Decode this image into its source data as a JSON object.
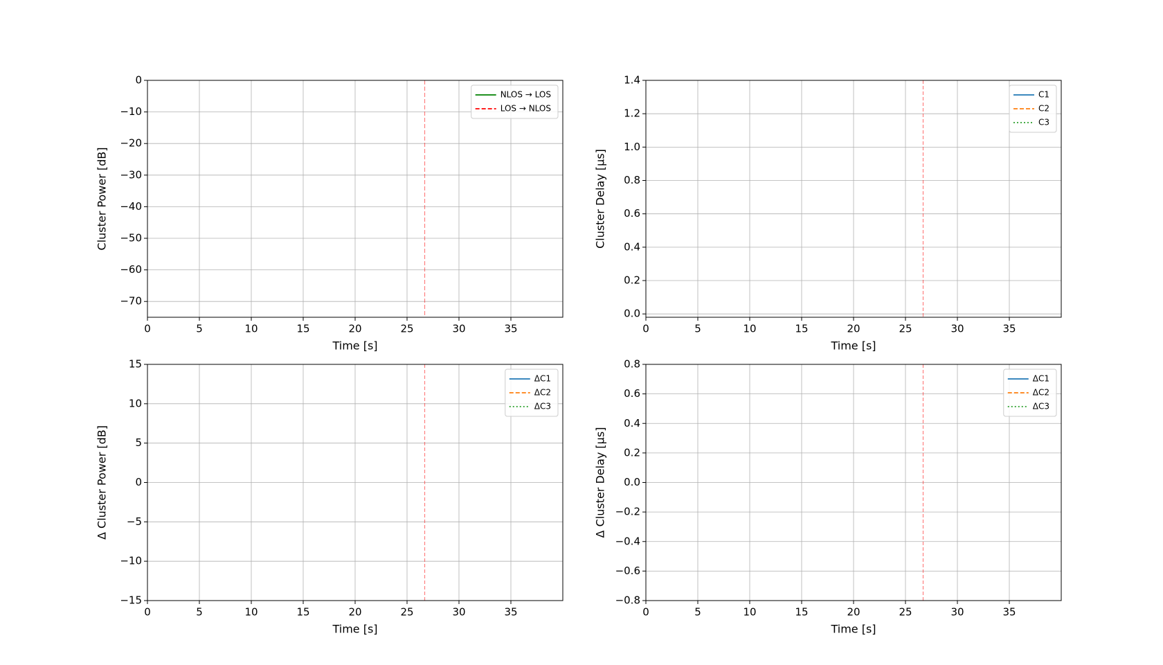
{
  "chart_data": [
    {
      "type": "line",
      "xlabel": "Time [s]",
      "ylabel": "Cluster Power [dB]",
      "xlim": [
        0,
        40
      ],
      "xticks": [
        0,
        5,
        10,
        15,
        20,
        25,
        30,
        35
      ],
      "ylim": [
        -75,
        0
      ],
      "yticks": [
        0,
        {
          "value": -10,
          "label": "−10"
        },
        {
          "value": -20,
          "label": "−20"
        },
        {
          "value": -30,
          "label": "−30"
        },
        {
          "value": -40,
          "label": "−40"
        },
        {
          "value": -50,
          "label": "−50"
        },
        {
          "value": -60,
          "label": "−60"
        },
        {
          "value": -70,
          "label": "−70"
        }
      ],
      "grid": true,
      "legend": "upper right",
      "series": [
        {
          "name": "NLOS → LOS",
          "color": "green",
          "dash": "solid",
          "vlines": []
        },
        {
          "name": "LOS → NLOS",
          "color": "red",
          "dash": "dashed",
          "vlines": [
            26.7
          ]
        }
      ]
    },
    {
      "type": "line",
      "xlabel": "Time [s]",
      "ylabel": "Cluster Delay [µs]",
      "xlim": [
        0,
        40
      ],
      "xticks": [
        0,
        5,
        10,
        15,
        20,
        25,
        30,
        35
      ],
      "ylim": [
        -0.02,
        1.4
      ],
      "yticks": [
        {
          "value": 0,
          "label": "0.0"
        },
        0.2,
        0.4,
        0.6,
        0.8,
        {
          "value": 1,
          "label": "1.0"
        },
        1.2,
        1.4
      ],
      "grid": true,
      "legend": "upper right",
      "vlines": [
        26.7
      ],
      "vline_color": "red",
      "x": [],
      "series": [
        {
          "name": "C1",
          "color": "#1f77b4",
          "dash": "solid",
          "values": []
        },
        {
          "name": "C2",
          "color": "#ff7f0e",
          "dash": "dashed",
          "values": []
        },
        {
          "name": "C3",
          "color": "#2ca02c",
          "dash": "dotted",
          "values": []
        }
      ]
    },
    {
      "type": "line",
      "xlabel": "Time [s]",
      "ylabel": "Δ Cluster Power [dB]",
      "xlim": [
        0,
        40
      ],
      "xticks": [
        0,
        5,
        10,
        15,
        20,
        25,
        30,
        35
      ],
      "ylim": [
        -15,
        15
      ],
      "yticks": [
        {
          "value": -15,
          "label": "−15"
        },
        {
          "value": -10,
          "label": "−10"
        },
        {
          "value": -5,
          "label": "−5"
        },
        0,
        5,
        10,
        15
      ],
      "grid": true,
      "legend": "upper right",
      "vlines": [
        26.7
      ],
      "vline_color": "red",
      "x": [],
      "series": [
        {
          "name": "ΔC1",
          "color": "#1f77b4",
          "dash": "solid",
          "values": []
        },
        {
          "name": "ΔC2",
          "color": "#ff7f0e",
          "dash": "dashed",
          "values": []
        },
        {
          "name": "ΔC3",
          "color": "#2ca02c",
          "dash": "dotted",
          "values": []
        }
      ]
    },
    {
      "type": "line",
      "xlabel": "Time [s]",
      "ylabel": "Δ Cluster Delay [µs]",
      "xlim": [
        0,
        40
      ],
      "xticks": [
        0,
        5,
        10,
        15,
        20,
        25,
        30,
        35
      ],
      "ylim": [
        -0.8,
        0.8
      ],
      "yticks": [
        {
          "value": -0.8,
          "label": "−0.8"
        },
        {
          "value": -0.6,
          "label": "−0.6"
        },
        {
          "value": -0.4,
          "label": "−0.4"
        },
        {
          "value": -0.2,
          "label": "−0.2"
        },
        {
          "value": 0,
          "label": "0.0"
        },
        0.2,
        0.4,
        0.6,
        0.8
      ],
      "grid": true,
      "legend": "upper right",
      "vlines": [
        26.7
      ],
      "vline_color": "red",
      "x": [],
      "series": [
        {
          "name": "ΔC1",
          "color": "#1f77b4",
          "dash": "solid",
          "values": []
        },
        {
          "name": "ΔC2",
          "color": "#ff7f0e",
          "dash": "dashed",
          "values": []
        },
        {
          "name": "ΔC3",
          "color": "#2ca02c",
          "dash": "dotted",
          "values": []
        }
      ]
    }
  ]
}
